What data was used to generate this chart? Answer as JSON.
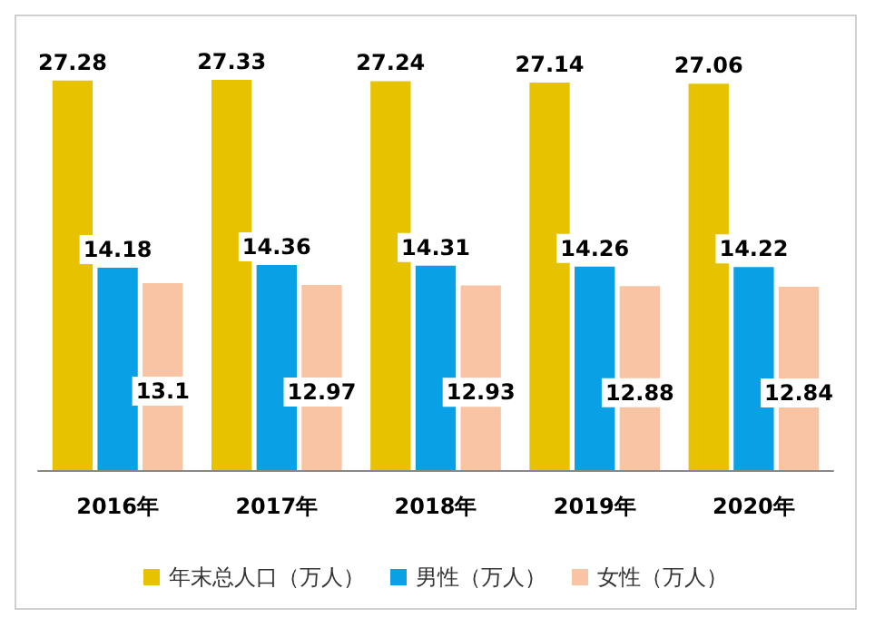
{
  "chart_data": {
    "type": "bar",
    "categories": [
      "2016年",
      "2017年",
      "2018年",
      "2019年",
      "2020年"
    ],
    "series": [
      {
        "name": "年末总人口（万人）",
        "color": "#e6c200",
        "values": [
          27.28,
          27.33,
          27.24,
          27.14,
          27.06
        ]
      },
      {
        "name": "男性（万人）",
        "color": "#0aa0e6",
        "values": [
          14.18,
          14.36,
          14.31,
          14.26,
          14.22
        ]
      },
      {
        "name": "女性（万人）",
        "color": "#f8c4a4",
        "values": [
          13.1,
          12.97,
          12.93,
          12.88,
          12.84
        ]
      }
    ],
    "data_labels": true,
    "legend": "bottom"
  }
}
